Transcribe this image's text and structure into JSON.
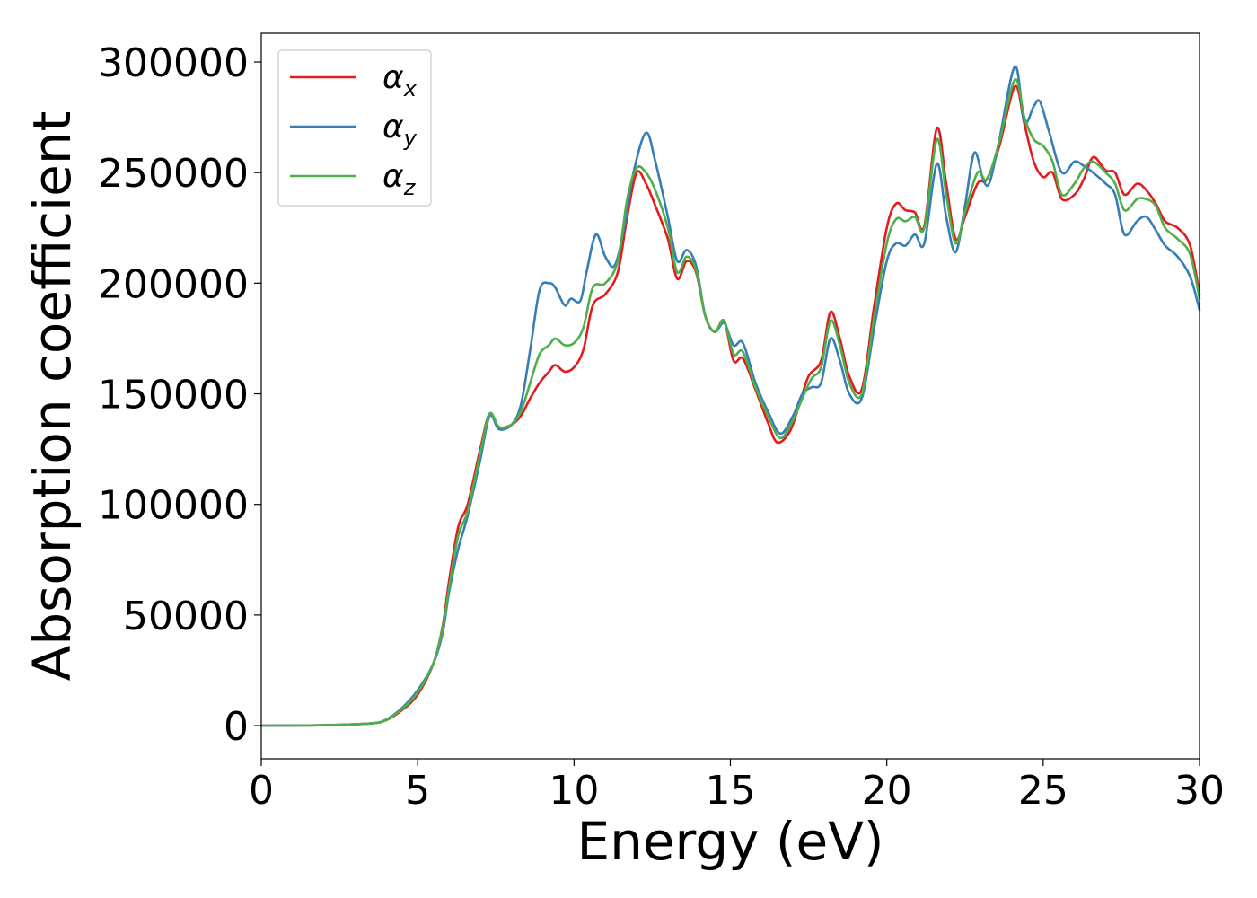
{
  "chart_data": {
    "type": "line",
    "title": "",
    "xlabel": "Energy (eV)",
    "ylabel": "Absorption coefficient",
    "xlim": [
      0,
      30
    ],
    "ylim": [
      -15000,
      313000
    ],
    "xticks": [
      0,
      5,
      10,
      15,
      20,
      25,
      30
    ],
    "yticks": [
      0,
      50000,
      100000,
      150000,
      200000,
      250000,
      300000
    ],
    "grid": false,
    "legend_position": "top-left",
    "series": [
      {
        "name": "α_x",
        "symbol": "α",
        "subscript": "x",
        "color": "#e41a1c",
        "points": [
          [
            0,
            0
          ],
          [
            2,
            200
          ],
          [
            3.5,
            1000
          ],
          [
            4,
            2500
          ],
          [
            4.5,
            7000
          ],
          [
            5,
            14000
          ],
          [
            5.5,
            28000
          ],
          [
            5.8,
            45000
          ],
          [
            6,
            65000
          ],
          [
            6.3,
            90000
          ],
          [
            6.6,
            100000
          ],
          [
            7,
            125000
          ],
          [
            7.3,
            141000
          ],
          [
            7.6,
            135000
          ],
          [
            8,
            136000
          ],
          [
            8.3,
            140000
          ],
          [
            8.6,
            148000
          ],
          [
            8.9,
            155000
          ],
          [
            9.2,
            160000
          ],
          [
            9.4,
            163000
          ],
          [
            9.7,
            160000
          ],
          [
            10,
            162000
          ],
          [
            10.3,
            170000
          ],
          [
            10.6,
            190000
          ],
          [
            11,
            195000
          ],
          [
            11.4,
            205000
          ],
          [
            11.7,
            230000
          ],
          [
            12,
            250000
          ],
          [
            12.3,
            245000
          ],
          [
            12.6,
            235000
          ],
          [
            13,
            220000
          ],
          [
            13.3,
            202000
          ],
          [
            13.6,
            210000
          ],
          [
            13.9,
            205000
          ],
          [
            14.2,
            185000
          ],
          [
            14.5,
            178000
          ],
          [
            14.8,
            183000
          ],
          [
            15.1,
            165000
          ],
          [
            15.4,
            166000
          ],
          [
            15.8,
            152000
          ],
          [
            16.2,
            137000
          ],
          [
            16.5,
            128000
          ],
          [
            16.9,
            133000
          ],
          [
            17.2,
            145000
          ],
          [
            17.5,
            158000
          ],
          [
            17.9,
            165000
          ],
          [
            18.2,
            187000
          ],
          [
            18.5,
            175000
          ],
          [
            18.8,
            158000
          ],
          [
            19.2,
            152000
          ],
          [
            19.6,
            190000
          ],
          [
            20,
            225000
          ],
          [
            20.3,
            236000
          ],
          [
            20.6,
            233000
          ],
          [
            20.9,
            232000
          ],
          [
            21.2,
            226000
          ],
          [
            21.6,
            270000
          ],
          [
            21.9,
            245000
          ],
          [
            22.2,
            220000
          ],
          [
            22.5,
            230000
          ],
          [
            22.9,
            245000
          ],
          [
            23.2,
            247000
          ],
          [
            23.6,
            262000
          ],
          [
            24.1,
            289000
          ],
          [
            24.4,
            272000
          ],
          [
            24.7,
            255000
          ],
          [
            25,
            248000
          ],
          [
            25.3,
            250000
          ],
          [
            25.6,
            238000
          ],
          [
            26,
            240000
          ],
          [
            26.3,
            247000
          ],
          [
            26.6,
            257000
          ],
          [
            27,
            251000
          ],
          [
            27.3,
            250000
          ],
          [
            27.6,
            240000
          ],
          [
            28,
            245000
          ],
          [
            28.3,
            242000
          ],
          [
            28.6,
            236000
          ],
          [
            28.9,
            228000
          ],
          [
            29.3,
            225000
          ],
          [
            29.7,
            217000
          ],
          [
            30,
            195000
          ]
        ]
      },
      {
        "name": "α_y",
        "symbol": "α",
        "subscript": "y",
        "color": "#377eb8",
        "points": [
          [
            0,
            0
          ],
          [
            2,
            200
          ],
          [
            3.5,
            1000
          ],
          [
            4,
            2800
          ],
          [
            4.5,
            8000
          ],
          [
            5,
            16000
          ],
          [
            5.5,
            28000
          ],
          [
            5.8,
            42000
          ],
          [
            6,
            60000
          ],
          [
            6.3,
            80000
          ],
          [
            6.6,
            95000
          ],
          [
            7,
            120000
          ],
          [
            7.3,
            140000
          ],
          [
            7.6,
            134000
          ],
          [
            8,
            136000
          ],
          [
            8.3,
            145000
          ],
          [
            8.6,
            170000
          ],
          [
            8.9,
            197000
          ],
          [
            9.2,
            200000
          ],
          [
            9.4,
            198000
          ],
          [
            9.7,
            190000
          ],
          [
            9.9,
            193000
          ],
          [
            10.2,
            192000
          ],
          [
            10.4,
            205000
          ],
          [
            10.7,
            222000
          ],
          [
            11,
            212000
          ],
          [
            11.3,
            208000
          ],
          [
            11.6,
            225000
          ],
          [
            11.9,
            250000
          ],
          [
            12.3,
            268000
          ],
          [
            12.6,
            255000
          ],
          [
            13,
            230000
          ],
          [
            13.3,
            210000
          ],
          [
            13.6,
            215000
          ],
          [
            13.9,
            208000
          ],
          [
            14.2,
            185000
          ],
          [
            14.5,
            178000
          ],
          [
            14.8,
            182000
          ],
          [
            15.1,
            172000
          ],
          [
            15.4,
            173000
          ],
          [
            15.8,
            155000
          ],
          [
            16.2,
            142000
          ],
          [
            16.6,
            132000
          ],
          [
            17,
            140000
          ],
          [
            17.3,
            150000
          ],
          [
            17.6,
            153000
          ],
          [
            17.9,
            155000
          ],
          [
            18.2,
            175000
          ],
          [
            18.5,
            165000
          ],
          [
            18.8,
            150000
          ],
          [
            19.2,
            148000
          ],
          [
            19.6,
            180000
          ],
          [
            20,
            210000
          ],
          [
            20.3,
            218000
          ],
          [
            20.6,
            217000
          ],
          [
            20.9,
            222000
          ],
          [
            21.2,
            218000
          ],
          [
            21.6,
            254000
          ],
          [
            21.9,
            230000
          ],
          [
            22.2,
            214000
          ],
          [
            22.5,
            235000
          ],
          [
            22.8,
            259000
          ],
          [
            23.1,
            246000
          ],
          [
            23.3,
            246000
          ],
          [
            23.6,
            265000
          ],
          [
            24.1,
            298000
          ],
          [
            24.4,
            273000
          ],
          [
            24.7,
            280000
          ],
          [
            24.9,
            282000
          ],
          [
            25.2,
            268000
          ],
          [
            25.6,
            250000
          ],
          [
            26,
            255000
          ],
          [
            26.3,
            253000
          ],
          [
            26.6,
            250000
          ],
          [
            27,
            245000
          ],
          [
            27.3,
            240000
          ],
          [
            27.6,
            222000
          ],
          [
            28,
            228000
          ],
          [
            28.3,
            230000
          ],
          [
            28.6,
            224000
          ],
          [
            28.9,
            217000
          ],
          [
            29.3,
            212000
          ],
          [
            29.7,
            203000
          ],
          [
            30,
            188000
          ]
        ]
      },
      {
        "name": "α_z",
        "symbol": "α",
        "subscript": "z",
        "color": "#4daf4a",
        "points": [
          [
            0,
            0
          ],
          [
            2,
            200
          ],
          [
            3.5,
            1000
          ],
          [
            4,
            2600
          ],
          [
            4.5,
            7500
          ],
          [
            5,
            15000
          ],
          [
            5.5,
            28000
          ],
          [
            5.8,
            44000
          ],
          [
            6,
            62000
          ],
          [
            6.3,
            86000
          ],
          [
            6.6,
            97000
          ],
          [
            7,
            123000
          ],
          [
            7.3,
            141000
          ],
          [
            7.6,
            135000
          ],
          [
            8,
            136000
          ],
          [
            8.3,
            142000
          ],
          [
            8.6,
            155000
          ],
          [
            8.9,
            168000
          ],
          [
            9.2,
            172000
          ],
          [
            9.4,
            175000
          ],
          [
            9.7,
            172000
          ],
          [
            10,
            173000
          ],
          [
            10.3,
            180000
          ],
          [
            10.6,
            198000
          ],
          [
            11,
            200000
          ],
          [
            11.4,
            210000
          ],
          [
            11.7,
            238000
          ],
          [
            12,
            252000
          ],
          [
            12.3,
            250000
          ],
          [
            12.6,
            242000
          ],
          [
            13,
            225000
          ],
          [
            13.3,
            205000
          ],
          [
            13.6,
            212000
          ],
          [
            13.9,
            206000
          ],
          [
            14.2,
            185000
          ],
          [
            14.5,
            178000
          ],
          [
            14.8,
            183000
          ],
          [
            15.1,
            168000
          ],
          [
            15.4,
            169000
          ],
          [
            15.8,
            153000
          ],
          [
            16.2,
            140000
          ],
          [
            16.6,
            130000
          ],
          [
            17,
            138000
          ],
          [
            17.3,
            148000
          ],
          [
            17.6,
            157000
          ],
          [
            17.9,
            162000
          ],
          [
            18.2,
            183000
          ],
          [
            18.5,
            172000
          ],
          [
            18.8,
            155000
          ],
          [
            19.2,
            150000
          ],
          [
            19.6,
            185000
          ],
          [
            20,
            218000
          ],
          [
            20.3,
            229000
          ],
          [
            20.6,
            228000
          ],
          [
            20.9,
            230000
          ],
          [
            21.2,
            225000
          ],
          [
            21.6,
            265000
          ],
          [
            21.9,
            240000
          ],
          [
            22.2,
            218000
          ],
          [
            22.5,
            232000
          ],
          [
            22.9,
            250000
          ],
          [
            23.2,
            247000
          ],
          [
            23.6,
            264000
          ],
          [
            24.1,
            292000
          ],
          [
            24.4,
            275000
          ],
          [
            24.7,
            265000
          ],
          [
            25,
            262000
          ],
          [
            25.3,
            255000
          ],
          [
            25.6,
            240000
          ],
          [
            26,
            245000
          ],
          [
            26.3,
            252000
          ],
          [
            26.6,
            255000
          ],
          [
            27,
            250000
          ],
          [
            27.3,
            245000
          ],
          [
            27.6,
            233000
          ],
          [
            28,
            238000
          ],
          [
            28.3,
            238000
          ],
          [
            28.6,
            235000
          ],
          [
            28.9,
            225000
          ],
          [
            29.3,
            220000
          ],
          [
            29.7,
            213000
          ],
          [
            30,
            193000
          ]
        ]
      }
    ]
  }
}
